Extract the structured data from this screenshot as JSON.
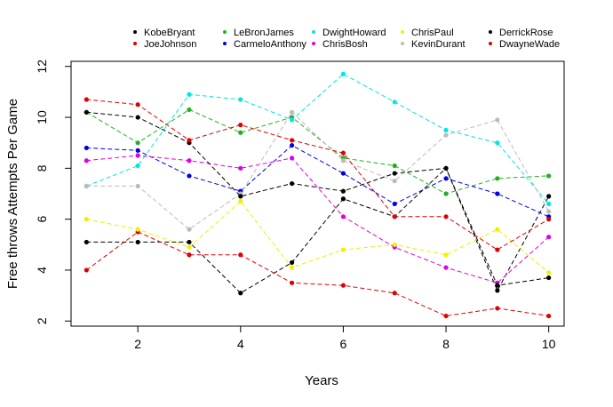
{
  "chart_data": {
    "type": "line",
    "title": "",
    "xlabel": "Years",
    "ylabel": "Free throws Attempts Per Game",
    "x": [
      1,
      2,
      3,
      4,
      5,
      6,
      7,
      8,
      9,
      10
    ],
    "xlim": [
      0.7,
      10.3
    ],
    "ylim": [
      1.8,
      12.2
    ],
    "xticks": [
      2,
      4,
      6,
      8,
      10
    ],
    "yticks": [
      2,
      4,
      6,
      8,
      10,
      12
    ],
    "grid": false,
    "legend_position": "top",
    "series": [
      {
        "name": "KobeBryant",
        "color": "#000000",
        "values": [
          5.1,
          5.1,
          5.1,
          3.1,
          4.3,
          6.8,
          6.1,
          8.0,
          3.2,
          6.9
        ]
      },
      {
        "name": "JoeJohnson",
        "color": "#DF0000",
        "values": [
          4.0,
          5.5,
          4.6,
          4.6,
          3.5,
          3.4,
          3.1,
          2.2,
          2.5,
          2.2
        ]
      },
      {
        "name": "LeBronJames",
        "color": "#22B022",
        "values": [
          10.2,
          9.0,
          10.3,
          9.4,
          10.0,
          8.4,
          8.1,
          7.0,
          7.6,
          7.7
        ]
      },
      {
        "name": "CarmeloAnthony",
        "color": "#0000E0",
        "values": [
          8.8,
          8.7,
          7.7,
          7.1,
          8.9,
          7.8,
          6.6,
          7.6,
          7.0,
          6.1
        ]
      },
      {
        "name": "DwightHoward",
        "color": "#00E6E6",
        "values": [
          7.3,
          8.1,
          10.9,
          10.7,
          9.9,
          11.7,
          10.6,
          9.5,
          9.0,
          6.6
        ]
      },
      {
        "name": "ChrisBosh",
        "color": "#E000E0",
        "values": [
          8.3,
          8.5,
          8.3,
          8.0,
          8.4,
          6.1,
          4.9,
          4.1,
          3.5,
          5.3
        ]
      },
      {
        "name": "ChrisPaul",
        "color": "#F0F000",
        "values": [
          6.0,
          5.6,
          4.9,
          6.7,
          4.1,
          4.8,
          5.0,
          4.6,
          5.6,
          3.9
        ]
      },
      {
        "name": "KevinDurant",
        "color": "#BBBBBB",
        "values": [
          7.3,
          7.3,
          5.6,
          7.0,
          10.2,
          8.3,
          7.5,
          9.3,
          9.9,
          6.3
        ]
      },
      {
        "name": "DerrickRose",
        "color": "#000000",
        "values": [
          10.2,
          10.0,
          9.0,
          6.9,
          7.4,
          7.1,
          7.8,
          8.0,
          3.4,
          3.7
        ]
      },
      {
        "name": "DwayneWade",
        "color": "#DF0000",
        "values": [
          10.7,
          10.5,
          9.1,
          9.7,
          9.1,
          8.6,
          6.1,
          6.1,
          4.8,
          6.0
        ]
      }
    ]
  }
}
